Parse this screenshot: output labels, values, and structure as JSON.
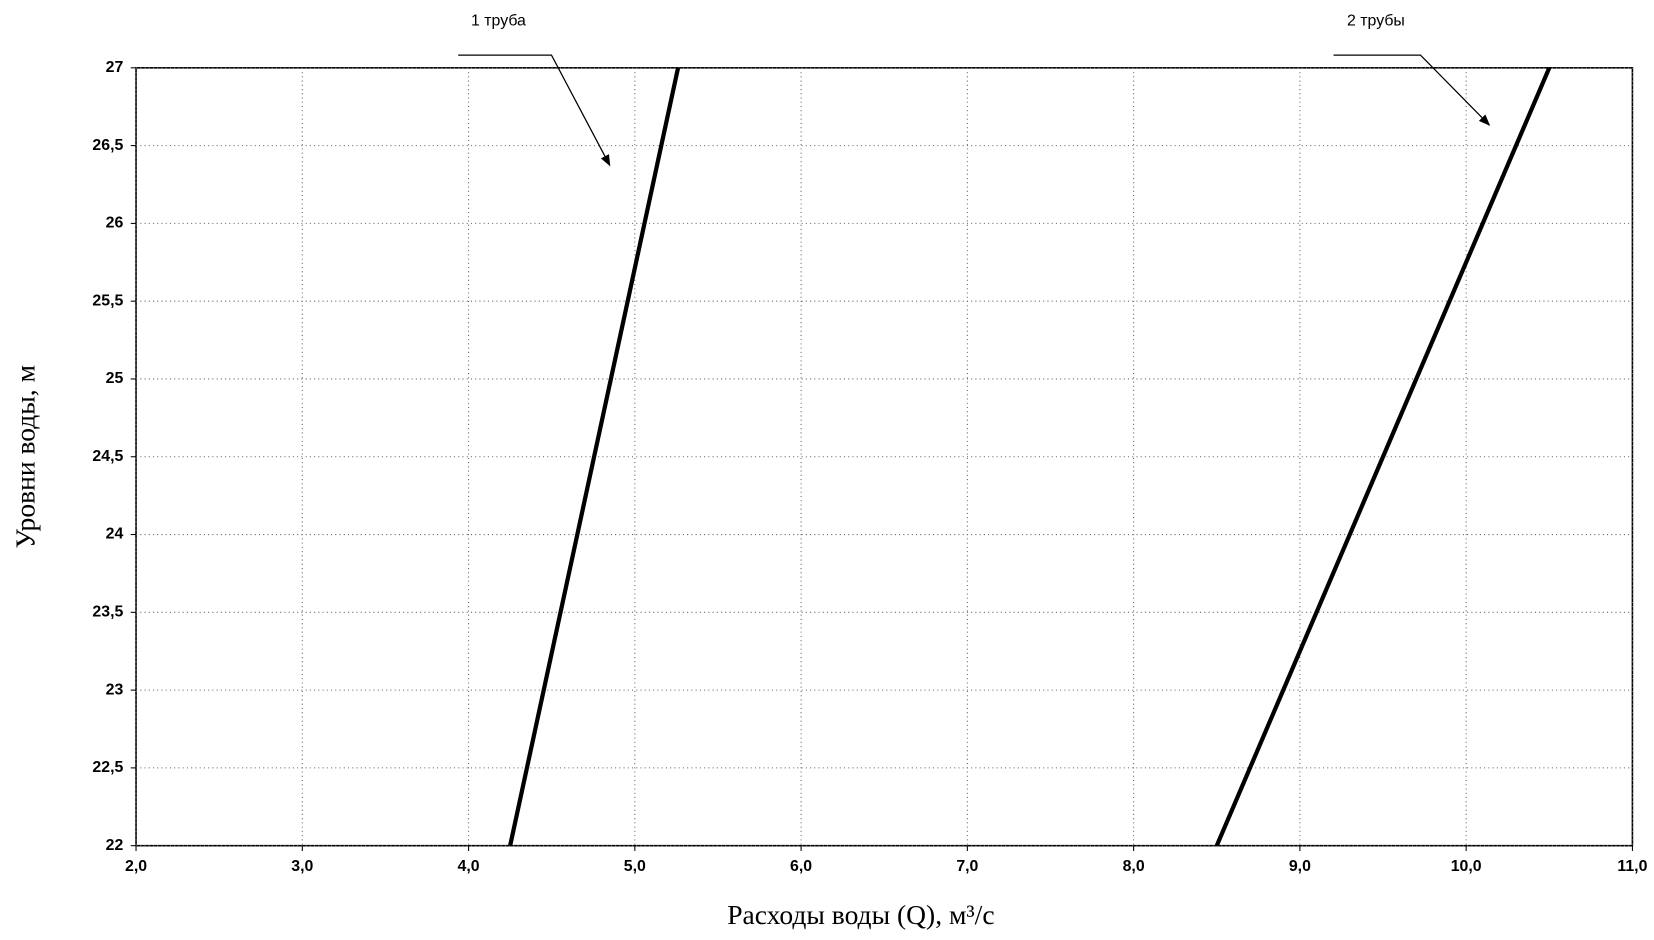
{
  "chart_data": {
    "type": "line",
    "xlabel": "Расходы  воды (Q), м³/с",
    "ylabel": "Уровни воды, м",
    "xlim": [
      2,
      11
    ],
    "ylim": [
      22,
      27
    ],
    "xticks": [
      {
        "value": 2,
        "label": "2,0"
      },
      {
        "value": 3,
        "label": "3,0"
      },
      {
        "value": 4,
        "label": "4,0"
      },
      {
        "value": 5,
        "label": "5,0"
      },
      {
        "value": 6,
        "label": "6,0"
      },
      {
        "value": 7,
        "label": "7,0"
      },
      {
        "value": 8,
        "label": "8,0"
      },
      {
        "value": 9,
        "label": "9,0"
      },
      {
        "value": 10,
        "label": "10,0"
      },
      {
        "value": 11,
        "label": "11,0"
      }
    ],
    "yticks": [
      22,
      {
        "value": 22.5,
        "label": "22,5"
      },
      23,
      {
        "value": 23.5,
        "label": "23,5"
      },
      24,
      {
        "value": 24.5,
        "label": "24,5"
      },
      25,
      {
        "value": 25.5,
        "label": "25,5"
      },
      26,
      {
        "value": 26.5,
        "label": "26,5"
      },
      27
    ],
    "grid": true,
    "series": [
      {
        "name": "1 труба",
        "color": "#000000",
        "x": [
          4.25,
          5.26
        ],
        "values": [
          22,
          27
        ]
      },
      {
        "name": "2 трубы",
        "color": "#000000",
        "x": [
          8.5,
          10.5
        ],
        "values": [
          22,
          27
        ]
      }
    ]
  }
}
